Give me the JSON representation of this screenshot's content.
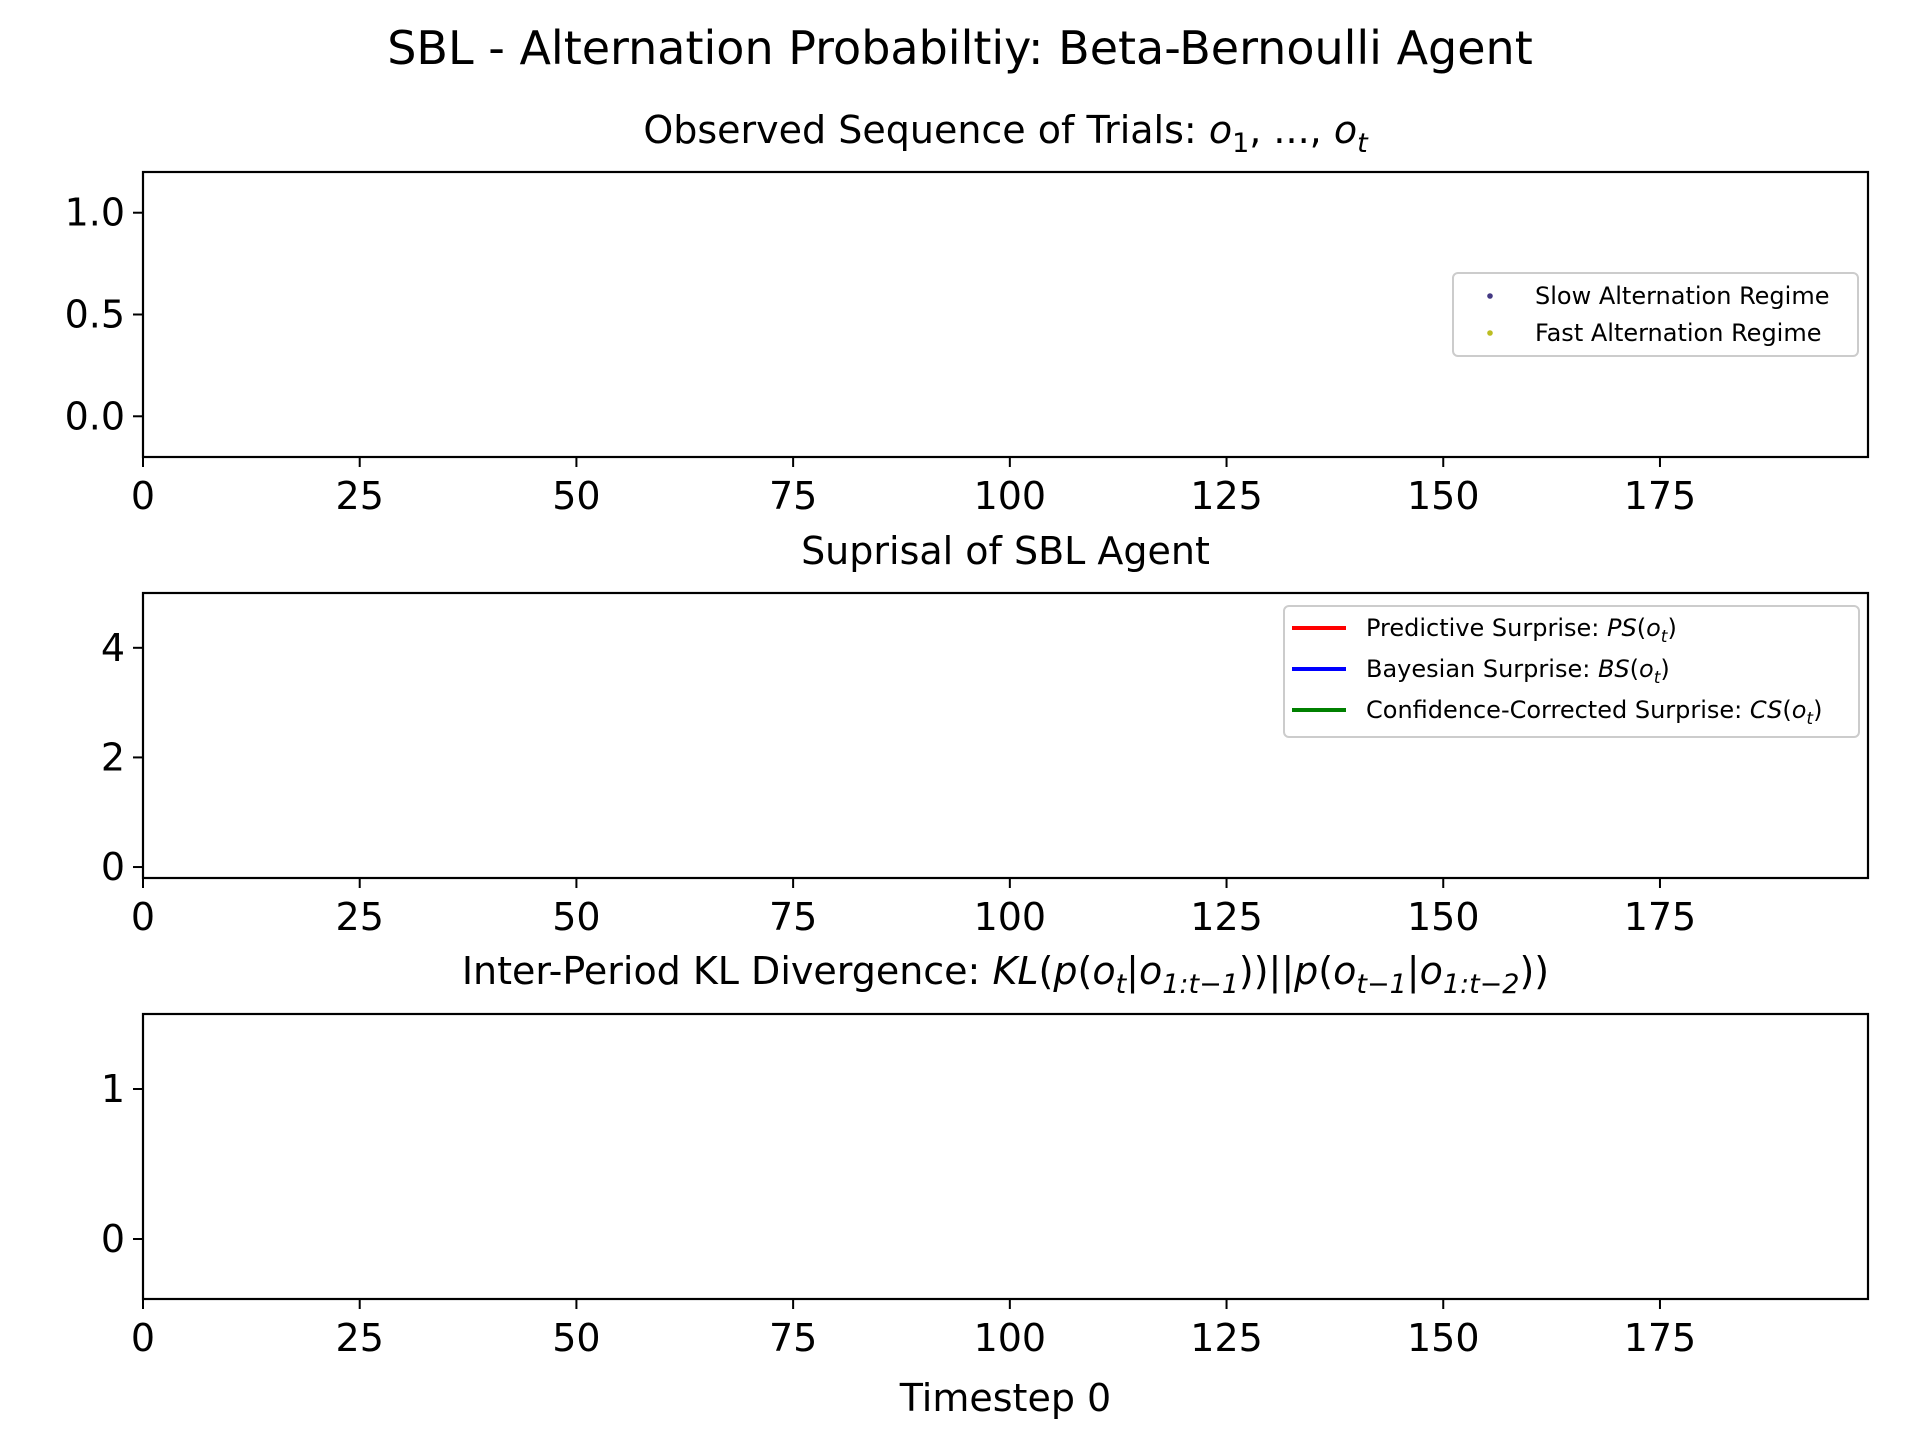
{
  "figure": {
    "suptitle": "SBL - Alternation Probabiltiy: Beta-Bernoulli Agent"
  },
  "chart_data": [
    {
      "type": "scatter",
      "title_text": "Observed Sequence of Trials: ",
      "title_math": [
        [
          "o",
          "1"
        ],
        [
          ", ..., "
        ],
        [
          "o",
          "t"
        ]
      ],
      "xlabel": "",
      "ylabel": "",
      "xlim": [
        0,
        199
      ],
      "ylim": [
        -0.2,
        1.2
      ],
      "xticks": [
        0,
        25,
        50,
        75,
        100,
        125,
        150,
        175
      ],
      "yticks": [
        0.0,
        0.5,
        1.0
      ],
      "ytick_labels": [
        "0.0",
        "0.5",
        "1.0"
      ],
      "grid": false,
      "legend_position": "center-right",
      "series": [
        {
          "name": "Slow Alternation Regime",
          "color": "#443983",
          "marker": "dot",
          "x": [],
          "y": []
        },
        {
          "name": "Fast Alternation Regime",
          "color": "#bcbd22",
          "marker": "dot",
          "x": [],
          "y": []
        }
      ]
    },
    {
      "type": "line",
      "title_text": "Suprisal of SBL Agent",
      "xlabel": "",
      "ylabel": "",
      "xlim": [
        0,
        199
      ],
      "ylim": [
        -0.2,
        5.0
      ],
      "xticks": [
        0,
        25,
        50,
        75,
        100,
        125,
        150,
        175
      ],
      "yticks": [
        0,
        2,
        4
      ],
      "ytick_labels": [
        "0",
        "2",
        "4"
      ],
      "grid": false,
      "legend_position": "top-right",
      "series": [
        {
          "name": "Predictive Surprise: ",
          "math": "PS",
          "color": "#ff0000",
          "x": [],
          "y": []
        },
        {
          "name": "Bayesian Surprise: ",
          "math": "BS",
          "color": "#0000ff",
          "x": [],
          "y": []
        },
        {
          "name": "Confidence-Corrected Surprise: ",
          "math": "CS",
          "color": "#008000",
          "x": [],
          "y": []
        }
      ]
    },
    {
      "type": "line",
      "title_text": "Inter-Period KL Divergence: ",
      "xlabel": "Timestep 0",
      "ylabel": "",
      "xlim": [
        0,
        199
      ],
      "ylim": [
        -0.4,
        1.5
      ],
      "xticks": [
        0,
        25,
        50,
        75,
        100,
        125,
        150,
        175
      ],
      "yticks": [
        0,
        1
      ],
      "ytick_labels": [
        "0",
        "1"
      ],
      "grid": false,
      "series": []
    }
  ]
}
